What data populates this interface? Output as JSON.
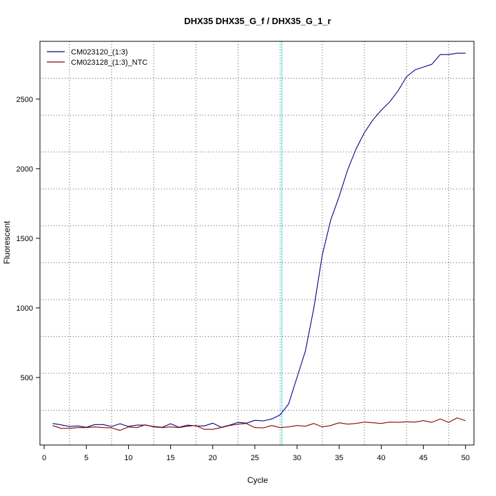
{
  "chart_data": {
    "type": "line",
    "title": "DHX35  DHX35_G_f / DHX35_G_1_r",
    "xlabel": "Cycle",
    "ylabel": "Fluorescent",
    "xlim": [
      -0.5,
      51
    ],
    "ylim": [
      15,
      2915
    ],
    "xticks": [
      0,
      5,
      10,
      15,
      20,
      25,
      30,
      35,
      40,
      45,
      50
    ],
    "yticks": [
      500,
      1000,
      1500,
      2000,
      2500
    ],
    "grid_x": [
      3,
      8,
      13,
      18,
      23,
      28,
      33,
      38,
      43,
      48
    ],
    "grid_y": [
      265,
      530,
      795,
      1060,
      1325,
      1590,
      1855,
      2120,
      2385,
      2650,
      2915
    ],
    "legend_position": "top-left",
    "threshold_cycle": 28.2,
    "threshold_color": "#40E0D0",
    "series": [
      {
        "name": "CM023120_(1:3)",
        "color": "#00008B",
        "x": [
          1,
          2,
          3,
          4,
          5,
          6,
          7,
          8,
          9,
          10,
          11,
          12,
          13,
          14,
          15,
          16,
          17,
          18,
          19,
          20,
          21,
          22,
          23,
          24,
          25,
          26,
          27,
          28,
          29,
          30,
          31,
          32,
          33,
          34,
          35,
          36,
          37,
          38,
          39,
          40,
          41,
          42,
          43,
          44,
          45,
          46,
          47,
          48,
          49,
          50
        ],
        "y": [
          170,
          160,
          148,
          152,
          142,
          162,
          162,
          148,
          168,
          148,
          158,
          158,
          148,
          142,
          168,
          142,
          158,
          152,
          152,
          172,
          142,
          158,
          178,
          172,
          192,
          188,
          202,
          232,
          310,
          500,
          690,
          1000,
          1380,
          1630,
          1800,
          1990,
          2140,
          2260,
          2350,
          2420,
          2480,
          2560,
          2660,
          2710,
          2730,
          2750,
          2820,
          2820,
          2830,
          2830
        ]
      },
      {
        "name": "CM023128_(1:3)_NTC",
        "color": "#8B0000",
        "x": [
          1,
          2,
          3,
          4,
          5,
          6,
          7,
          8,
          9,
          10,
          11,
          12,
          13,
          14,
          15,
          16,
          17,
          18,
          19,
          20,
          21,
          22,
          23,
          24,
          25,
          26,
          27,
          28,
          29,
          30,
          31,
          32,
          33,
          34,
          35,
          36,
          37,
          38,
          39,
          40,
          41,
          42,
          43,
          44,
          45,
          46,
          47,
          48,
          49,
          50
        ],
        "y": [
          155,
          135,
          135,
          140,
          140,
          145,
          140,
          138,
          120,
          145,
          140,
          160,
          145,
          140,
          145,
          140,
          150,
          155,
          128,
          128,
          140,
          155,
          165,
          170,
          140,
          138,
          155,
          140,
          145,
          155,
          150,
          170,
          145,
          155,
          175,
          165,
          170,
          180,
          175,
          170,
          180,
          178,
          182,
          180,
          190,
          178,
          202,
          178,
          210,
          190
        ]
      }
    ]
  }
}
